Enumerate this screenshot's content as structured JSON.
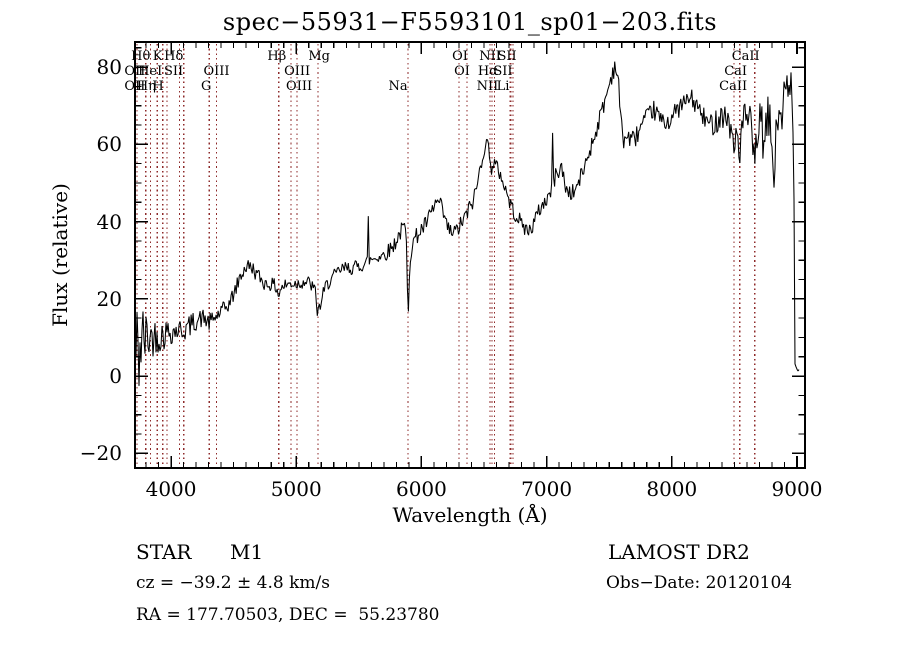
{
  "window": {
    "background": "#ffffff",
    "foreground": "#000000"
  },
  "chart_data": {
    "type": "line",
    "title": "spec−55931−F5593101_sp01−203.fits",
    "xlabel": "Wavelength (Å)",
    "ylabel": "Flux (relative)",
    "xlim": [
      3712,
      9064
    ],
    "ylim": [
      -23.8,
      86.5
    ],
    "grid": false,
    "line_color": "#000000",
    "marker_color": "#8e2a2a",
    "x_ticks": [
      {
        "value": 4000,
        "label": "4000"
      },
      {
        "value": 5000,
        "label": "5000"
      },
      {
        "value": 6000,
        "label": "6000"
      },
      {
        "value": 7000,
        "label": "7000"
      },
      {
        "value": 8000,
        "label": "8000"
      },
      {
        "value": 9000,
        "label": "9000"
      }
    ],
    "y_ticks": [
      {
        "value": -20,
        "label": "−20"
      },
      {
        "value": 0,
        "label": "0"
      },
      {
        "value": 20,
        "label": "20"
      },
      {
        "value": 40,
        "label": "40"
      },
      {
        "value": 60,
        "label": "60"
      },
      {
        "value": 80,
        "label": "80"
      }
    ],
    "x_minor_step": 100,
    "y_minor_step": 5,
    "noise_seed": 42,
    "sample_step": 8,
    "sample_range": [
      3712,
      9016
    ],
    "envelope": [
      [
        3712,
        4
      ],
      [
        3722,
        8
      ],
      [
        3732,
        2
      ],
      [
        3744,
        7
      ],
      [
        3760,
        9
      ],
      [
        3800,
        10
      ],
      [
        3840,
        10
      ],
      [
        3880,
        10.5
      ],
      [
        3930,
        10.5
      ],
      [
        3970,
        11.5
      ],
      [
        4000,
        11.5
      ],
      [
        4060,
        12
      ],
      [
        4101,
        11.8
      ],
      [
        4150,
        13
      ],
      [
        4200,
        14.5
      ],
      [
        4260,
        15
      ],
      [
        4305,
        13.8
      ],
      [
        4340,
        14.8
      ],
      [
        4380,
        16
      ],
      [
        4430,
        17.5
      ],
      [
        4470,
        19
      ],
      [
        4510,
        22
      ],
      [
        4550,
        25.5
      ],
      [
        4590,
        28
      ],
      [
        4620,
        28.5
      ],
      [
        4650,
        28
      ],
      [
        4680,
        26.5
      ],
      [
        4710,
        25.5
      ],
      [
        4745,
        24
      ],
      [
        4790,
        23.8
      ],
      [
        4830,
        23.5
      ],
      [
        4853,
        22
      ],
      [
        4861,
        20.5
      ],
      [
        4872,
        22.5
      ],
      [
        4910,
        23.5
      ],
      [
        4960,
        24
      ],
      [
        5010,
        24
      ],
      [
        5060,
        24.5
      ],
      [
        5110,
        24
      ],
      [
        5150,
        22
      ],
      [
        5168,
        17
      ],
      [
        5185,
        17.5
      ],
      [
        5205,
        20
      ],
      [
        5235,
        23
      ],
      [
        5270,
        25
      ],
      [
        5310,
        26
      ],
      [
        5355,
        27.5
      ],
      [
        5400,
        28
      ],
      [
        5450,
        28
      ],
      [
        5500,
        28.5
      ],
      [
        5545,
        29
      ],
      [
        5572,
        30
      ],
      [
        5577,
        43
      ],
      [
        5583,
        30
      ],
      [
        5620,
        30.5
      ],
      [
        5660,
        31
      ],
      [
        5700,
        31.5
      ],
      [
        5740,
        32.5
      ],
      [
        5780,
        34
      ],
      [
        5820,
        36.5
      ],
      [
        5855,
        38.5
      ],
      [
        5875,
        38
      ],
      [
        5885,
        29
      ],
      [
        5891,
        16
      ],
      [
        5898,
        19
      ],
      [
        5906,
        30
      ],
      [
        5925,
        34
      ],
      [
        5955,
        36
      ],
      [
        5990,
        37.5
      ],
      [
        6030,
        39
      ],
      [
        6070,
        41.5
      ],
      [
        6110,
        44.5
      ],
      [
        6140,
        45
      ],
      [
        6175,
        42
      ],
      [
        6205,
        38.5
      ],
      [
        6240,
        37
      ],
      [
        6280,
        37.5
      ],
      [
        6320,
        39.5
      ],
      [
        6355,
        41.5
      ],
      [
        6385,
        43.5
      ],
      [
        6420,
        46
      ],
      [
        6455,
        51
      ],
      [
        6485,
        57
      ],
      [
        6510,
        60
      ],
      [
        6535,
        59.5
      ],
      [
        6553,
        57
      ],
      [
        6563,
        51.5
      ],
      [
        6572,
        55
      ],
      [
        6600,
        54
      ],
      [
        6630,
        52.5
      ],
      [
        6665,
        49
      ],
      [
        6700,
        45.5
      ],
      [
        6730,
        43
      ],
      [
        6770,
        41
      ],
      [
        6810,
        39
      ],
      [
        6850,
        37.5
      ],
      [
        6880,
        38.5
      ],
      [
        6915,
        41
      ],
      [
        6950,
        43.5
      ],
      [
        6985,
        45
      ],
      [
        7020,
        47
      ],
      [
        7040,
        48
      ],
      [
        7046,
        68
      ],
      [
        7053,
        50
      ],
      [
        7085,
        53
      ],
      [
        7120,
        54
      ],
      [
        7150,
        49
      ],
      [
        7180,
        47.5
      ],
      [
        7215,
        47.5
      ],
      [
        7255,
        50
      ],
      [
        7300,
        54
      ],
      [
        7345,
        58.5
      ],
      [
        7390,
        63
      ],
      [
        7435,
        68
      ],
      [
        7480,
        73
      ],
      [
        7520,
        78
      ],
      [
        7550,
        81
      ],
      [
        7575,
        75
      ],
      [
        7600,
        64
      ],
      [
        7615,
        61.5
      ],
      [
        7650,
        62
      ],
      [
        7690,
        61
      ],
      [
        7730,
        63
      ],
      [
        7770,
        65.5
      ],
      [
        7810,
        67
      ],
      [
        7850,
        69
      ],
      [
        7890,
        67.5
      ],
      [
        7930,
        65.5
      ],
      [
        7970,
        66
      ],
      [
        8010,
        67.5
      ],
      [
        8060,
        69.5
      ],
      [
        8110,
        71
      ],
      [
        8150,
        72
      ],
      [
        8200,
        70
      ],
      [
        8250,
        67
      ],
      [
        8300,
        65
      ],
      [
        8350,
        66
      ],
      [
        8400,
        68
      ],
      [
        8440,
        67
      ],
      [
        8475,
        64
      ],
      [
        8498,
        56.5
      ],
      [
        8515,
        65
      ],
      [
        8542,
        57.5
      ],
      [
        8565,
        66
      ],
      [
        8600,
        67
      ],
      [
        8630,
        65
      ],
      [
        8662,
        54
      ],
      [
        8685,
        64
      ],
      [
        8715,
        66
      ],
      [
        8740,
        58
      ],
      [
        8765,
        67
      ],
      [
        8790,
        64
      ],
      [
        8815,
        52
      ],
      [
        8835,
        62
      ],
      [
        8860,
        70
      ],
      [
        8885,
        68
      ],
      [
        8910,
        74
      ],
      [
        8935,
        70
      ],
      [
        8955,
        78
      ],
      [
        8968,
        62
      ],
      [
        8976,
        45
      ],
      [
        8982,
        3
      ],
      [
        9016,
        1.5
      ]
    ],
    "noise_amp": [
      [
        3712,
        20
      ],
      [
        3736,
        16
      ],
      [
        3760,
        12
      ],
      [
        3800,
        7
      ],
      [
        3860,
        5
      ],
      [
        3920,
        4.5
      ],
      [
        3980,
        3.5
      ],
      [
        4050,
        3
      ],
      [
        4150,
        3
      ],
      [
        4250,
        2.5
      ],
      [
        4400,
        2.2
      ],
      [
        4600,
        2
      ],
      [
        4800,
        1.8
      ],
      [
        5000,
        1.8
      ],
      [
        5200,
        2
      ],
      [
        5400,
        1.8
      ],
      [
        5600,
        1.8
      ],
      [
        5800,
        2.2
      ],
      [
        6000,
        2.2
      ],
      [
        6200,
        2.3
      ],
      [
        6400,
        2.3
      ],
      [
        6600,
        2.2
      ],
      [
        6800,
        2
      ],
      [
        7000,
        2.2
      ],
      [
        7200,
        2.2
      ],
      [
        7400,
        2.3
      ],
      [
        7600,
        2.8
      ],
      [
        7800,
        2.5
      ],
      [
        8000,
        2.5
      ],
      [
        8200,
        2.6
      ],
      [
        8400,
        3.5
      ],
      [
        8600,
        4.5
      ],
      [
        8750,
        6
      ],
      [
        8870,
        7
      ],
      [
        8950,
        7
      ],
      [
        8965,
        7
      ],
      [
        8980,
        1
      ],
      [
        9016,
        0.4
      ]
    ],
    "line_markers": [
      3727,
      3798,
      3835,
      3889,
      3933,
      3968,
      4068,
      4101,
      4305,
      4363,
      4861,
      4959,
      5007,
      5175,
      5893,
      6300,
      6364,
      6548,
      6563,
      6583,
      6708,
      6716,
      6731,
      8498,
      8542,
      8662
    ],
    "line_labels": [
      {
        "row": 1,
        "text": "Hθ",
        "wavelength": 3798,
        "dx": -5
      },
      {
        "row": 1,
        "text": "K",
        "wavelength": 3933,
        "dx": -5
      },
      {
        "row": 1,
        "text": "Hδ",
        "wavelength": 4101,
        "dx": -10
      },
      {
        "row": 1,
        "text": "Hβ",
        "wavelength": 4861,
        "dx": -2
      },
      {
        "row": 1,
        "text": "Mg",
        "wavelength": 5175,
        "dx": 1
      },
      {
        "row": 1,
        "text": "OI",
        "wavelength": 6300,
        "dx": 1
      },
      {
        "row": 1,
        "text": "NII",
        "wavelength": 6548,
        "dx": 0
      },
      {
        "row": 1,
        "text": "SII",
        "wavelength": 6716,
        "dx": -4
      },
      {
        "row": 1,
        "text": "CaII",
        "wavelength": 8662,
        "dx": -9
      },
      {
        "row": 2,
        "text": "OII",
        "wavelength": 3727,
        "dx": -2
      },
      {
        "row": 2,
        "text": "HeI",
        "wavelength": 3889,
        "dx": -7
      },
      {
        "row": 2,
        "text": "SII",
        "wavelength": 4068,
        "dx": -6
      },
      {
        "row": 2,
        "text": "OIII",
        "wavelength": 4363,
        "dx": 0
      },
      {
        "row": 2,
        "text": "OIII",
        "wavelength": 5007,
        "dx": 0
      },
      {
        "row": 2,
        "text": "OI",
        "wavelength": 6364,
        "dx": -5
      },
      {
        "row": 2,
        "text": "Hα",
        "wavelength": 6563,
        "dx": -4
      },
      {
        "row": 2,
        "text": "SII",
        "wavelength": 6731,
        "dx": -10
      },
      {
        "row": 2,
        "text": "CaI",
        "wavelength": 8542,
        "dx": -4
      },
      {
        "row": 3,
        "text": "OII",
        "wavelength": 3727,
        "dx": -2
      },
      {
        "row": 3,
        "text": "Hη",
        "wavelength": 3835,
        "dx": -4
      },
      {
        "row": 3,
        "text": "H",
        "wavelength": 3968,
        "dx": -9
      },
      {
        "row": 3,
        "text": "G",
        "wavelength": 4305,
        "dx": -3
      },
      {
        "row": 3,
        "text": "OIII",
        "wavelength": 4959,
        "dx": 8
      },
      {
        "row": 3,
        "text": "Na",
        "wavelength": 5893,
        "dx": -10
      },
      {
        "row": 3,
        "text": "NII",
        "wavelength": 6583,
        "dx": -7
      },
      {
        "row": 3,
        "text": "Li",
        "wavelength": 6708,
        "dx": -7
      },
      {
        "row": 3,
        "text": "CaII",
        "wavelength": 8498,
        "dx": -1
      }
    ]
  },
  "annotations": {
    "object_class": "STAR",
    "subclass": "M1",
    "survey": "LAMOST DR2",
    "cz": "cz = −39.2 ± 4.8 km/s",
    "obs_date": "Obs−Date: 20120104",
    "ra_dec": "RA = 177.70503, DEC =  55.23780"
  }
}
